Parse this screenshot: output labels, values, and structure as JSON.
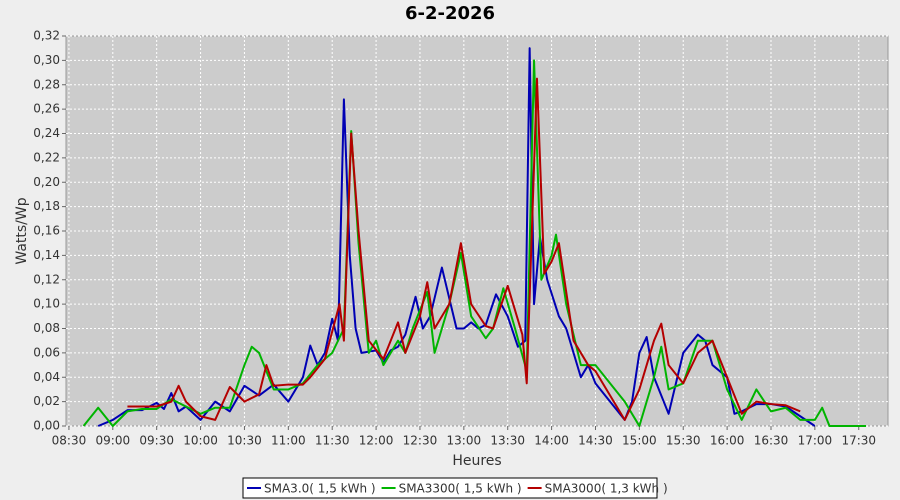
{
  "chart_data": {
    "type": "line",
    "title": "6-2-2026",
    "x_label": "Heures",
    "y_label": "Watts/Wp",
    "xlim": [
      508,
      1070
    ],
    "xticks": [
      {
        "value": 510,
        "label": "08:30"
      },
      {
        "value": 540,
        "label": "09:00"
      },
      {
        "value": 570,
        "label": "09:30"
      },
      {
        "value": 600,
        "label": "10:00"
      },
      {
        "value": 630,
        "label": "10:30"
      },
      {
        "value": 660,
        "label": "11:00"
      },
      {
        "value": 690,
        "label": "11:30"
      },
      {
        "value": 720,
        "label": "12:00"
      },
      {
        "value": 750,
        "label": "12:30"
      },
      {
        "value": 780,
        "label": "13:00"
      },
      {
        "value": 810,
        "label": "13:30"
      },
      {
        "value": 840,
        "label": "14:00"
      },
      {
        "value": 870,
        "label": "14:30"
      },
      {
        "value": 900,
        "label": "15:00"
      },
      {
        "value": 930,
        "label": "15:30"
      },
      {
        "value": 960,
        "label": "16:00"
      },
      {
        "value": 990,
        "label": "16:30"
      },
      {
        "value": 1020,
        "label": "17:00"
      },
      {
        "value": 1050,
        "label": "17:30"
      }
    ],
    "ylim": [
      0,
      0.32
    ],
    "yticks": [
      {
        "value": 0,
        "label": "0,00"
      },
      {
        "value": 0.02,
        "label": "0,02"
      },
      {
        "value": 0.04,
        "label": "0,04"
      },
      {
        "value": 0.06,
        "label": "0,06"
      },
      {
        "value": 0.08,
        "label": "0,08"
      },
      {
        "value": 0.1,
        "label": "0,10"
      },
      {
        "value": 0.12,
        "label": "0,12"
      },
      {
        "value": 0.14,
        "label": "0,14"
      },
      {
        "value": 0.16,
        "label": "0,16"
      },
      {
        "value": 0.18,
        "label": "0,18"
      },
      {
        "value": 0.2,
        "label": "0,20"
      },
      {
        "value": 0.22,
        "label": "0,22"
      },
      {
        "value": 0.24,
        "label": "0,24"
      },
      {
        "value": 0.26,
        "label": "0,26"
      },
      {
        "value": 0.28,
        "label": "0,28"
      },
      {
        "value": 0.3,
        "label": "0,30"
      },
      {
        "value": 0.32,
        "label": "0,32"
      }
    ],
    "grid": true,
    "legend": "bottom",
    "series": [
      {
        "name": "SMA3.0( 1,5 kWh )",
        "color": "#0000b4",
        "x": [
          530,
          540,
          550,
          560,
          570,
          575,
          580,
          585,
          590,
          600,
          610,
          620,
          630,
          640,
          650,
          660,
          670,
          675,
          680,
          685,
          690,
          694,
          698,
          702,
          706,
          710,
          720,
          725,
          730,
          735,
          740,
          747,
          752,
          757,
          765,
          775,
          780,
          785,
          790,
          795,
          802,
          810,
          817,
          822,
          825,
          828,
          832,
          837,
          845,
          850,
          860,
          865,
          870,
          880,
          890,
          895,
          900,
          905,
          910,
          920,
          930,
          940,
          945,
          950,
          960,
          965,
          970,
          980,
          990,
          1000,
          1010,
          1020
        ],
        "values": [
          0,
          0.005,
          0.013,
          0.013,
          0.019,
          0.014,
          0.027,
          0.012,
          0.016,
          0.005,
          0.02,
          0.012,
          0.033,
          0.025,
          0.034,
          0.02,
          0.04,
          0.066,
          0.05,
          0.06,
          0.088,
          0.07,
          0.268,
          0.14,
          0.08,
          0.06,
          0.062,
          0.052,
          0.062,
          0.065,
          0.075,
          0.106,
          0.08,
          0.09,
          0.13,
          0.08,
          0.08,
          0.085,
          0.08,
          0.083,
          0.108,
          0.09,
          0.065,
          0.07,
          0.31,
          0.1,
          0.155,
          0.12,
          0.09,
          0.08,
          0.04,
          0.05,
          0.035,
          0.02,
          0.005,
          0.02,
          0.06,
          0.073,
          0.04,
          0.01,
          0.06,
          0.075,
          0.07,
          0.05,
          0.04,
          0.01,
          0.012,
          0.018,
          0.018,
          0.016,
          0.008,
          0
        ]
      },
      {
        "name": "SMA3300( 1,5 kWh )",
        "color": "#00b400",
        "x": [
          520,
          530,
          540,
          550,
          560,
          570,
          580,
          590,
          600,
          610,
          620,
          630,
          635,
          640,
          650,
          660,
          670,
          680,
          690,
          698,
          703,
          708,
          715,
          720,
          725,
          735,
          740,
          745,
          755,
          760,
          770,
          778,
          785,
          795,
          800,
          807,
          815,
          823,
          828,
          833,
          840,
          843,
          850,
          860,
          870,
          880,
          890,
          900,
          910,
          915,
          920,
          930,
          940,
          950,
          960,
          970,
          980,
          990,
          1000,
          1010,
          1020,
          1025,
          1030,
          1055
        ],
        "values": [
          0,
          0.015,
          0,
          0.012,
          0.014,
          0.014,
          0.022,
          0.016,
          0.01,
          0.015,
          0.015,
          0.05,
          0.065,
          0.06,
          0.03,
          0.03,
          0.035,
          0.05,
          0.06,
          0.08,
          0.242,
          0.15,
          0.06,
          0.07,
          0.05,
          0.07,
          0.06,
          0.08,
          0.11,
          0.06,
          0.1,
          0.142,
          0.09,
          0.072,
          0.08,
          0.113,
          0.08,
          0.045,
          0.3,
          0.12,
          0.14,
          0.157,
          0.1,
          0.05,
          0.05,
          0.035,
          0.02,
          0,
          0.04,
          0.065,
          0.03,
          0.035,
          0.07,
          0.07,
          0.03,
          0.005,
          0.03,
          0.012,
          0.015,
          0.005,
          0.005,
          0.015,
          0,
          0
        ]
      },
      {
        "name": "SMA3000( 1,3 kWh )",
        "color": "#b40000",
        "x": [
          550,
          560,
          570,
          580,
          585,
          590,
          600,
          610,
          620,
          630,
          640,
          645,
          650,
          660,
          670,
          675,
          685,
          695,
          698,
          703,
          708,
          715,
          725,
          730,
          735,
          740,
          750,
          755,
          760,
          770,
          778,
          785,
          795,
          800,
          810,
          820,
          823,
          830,
          835,
          840,
          845,
          855,
          865,
          870,
          880,
          890,
          900,
          910,
          915,
          920,
          930,
          940,
          950,
          960,
          970,
          980,
          990,
          1000,
          1010
        ],
        "values": [
          0.016,
          0.016,
          0.016,
          0.02,
          0.033,
          0.02,
          0.008,
          0.005,
          0.032,
          0.02,
          0.026,
          0.05,
          0.033,
          0.034,
          0.034,
          0.04,
          0.055,
          0.1,
          0.07,
          0.24,
          0.16,
          0.07,
          0.055,
          0.07,
          0.085,
          0.06,
          0.09,
          0.118,
          0.08,
          0.1,
          0.15,
          0.1,
          0.082,
          0.08,
          0.115,
          0.075,
          0.035,
          0.285,
          0.125,
          0.135,
          0.15,
          0.07,
          0.05,
          0.045,
          0.025,
          0.005,
          0.03,
          0.07,
          0.084,
          0.05,
          0.035,
          0.06,
          0.07,
          0.04,
          0.01,
          0.02,
          0.018,
          0.017,
          0.012
        ]
      }
    ]
  }
}
